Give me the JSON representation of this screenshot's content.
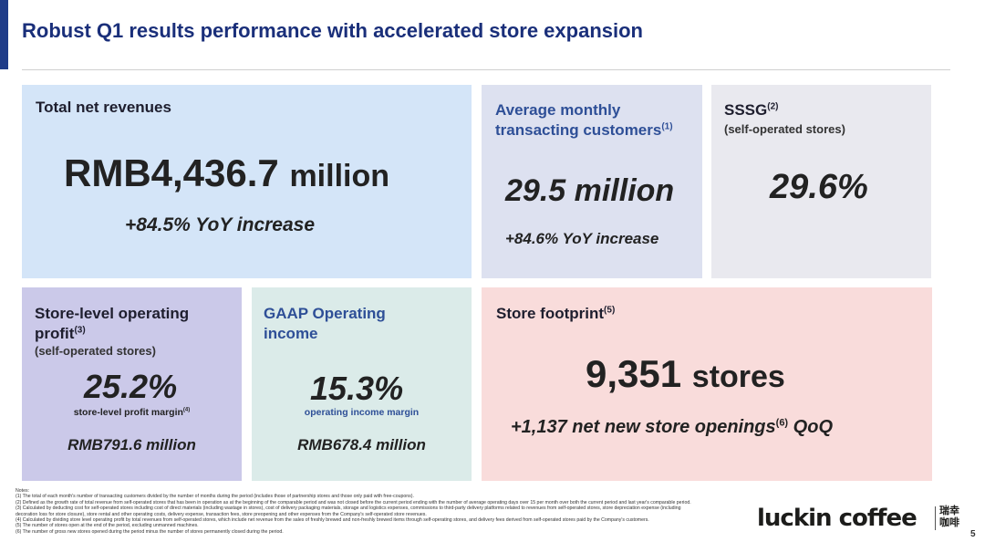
{
  "header": {
    "title": "Robust Q1 results performance with accelerated store expansion",
    "accent_color": "#1f3c88"
  },
  "cards": {
    "revenue": {
      "title": "Total net revenues",
      "value_main": "RMB4,436.7",
      "value_unit": "million",
      "growth": "+84.5% YoY increase"
    },
    "customers": {
      "title_line1": "Average monthly",
      "title_line2": "transacting customers",
      "note_ref": "(1)",
      "value": "29.5 million",
      "growth": "+84.6% YoY increase"
    },
    "sssg": {
      "title": "SSSG",
      "note_ref": "(2)",
      "subtitle": "(self-operated stores)",
      "value": "29.6%"
    },
    "store_level": {
      "title_line1": "Store-level operating",
      "title_line2": "profit",
      "note_ref": "(3)",
      "subtitle": "(self-operated stores)",
      "value": "25.2%",
      "label": "store-level profit margin",
      "label_ref": "(4)",
      "amount": "RMB791.6 million"
    },
    "gaap": {
      "title_line1": "GAAP Operating",
      "title_line2": "income",
      "value": "15.3%",
      "label": "operating income margin",
      "amount": "RMB678.4 million"
    },
    "footprint": {
      "title": "Store footprint",
      "note_ref": "(5)",
      "value_main": "9,351",
      "value_unit": "stores",
      "growth_pre": "+1,137 net new store openings",
      "growth_ref": "(6)",
      "growth_post": " QoQ"
    }
  },
  "notes": {
    "heading": "Notes:",
    "items": [
      "(1)   The total of each month's number of transacting customers divided by the number of months during the period (includes those of partnership stores and those only paid with free-coupons).",
      "(2)   Defined as the growth rate of total revenue from self-operated stores that has been in operation as at the beginning of the comparable period and was not closed before the current period ending with the number of average operating days over 15 per month over both the current period and last year's comparable period.",
      "(3)   Calculated by deducting cost for self-operated stores including cost of direct materials (including wastage in stores), cost of delivery packaging materials, storage and logistics expenses, commissions to third-party delivery platforms related to revenues from self-operated stores, store depreciation expense (including",
      "        decoration loss for store closure), store rental and other operating costs, delivery expense, transaction fees, store preopening and other expenses from the Company's self-operated store revenues.",
      "(4)   Calculated by dividing store level operating profit by total revenues from self-operated stores, which include net revenue from the sales of freshly brewed and non-freshly brewed items through self-operating stores, and delivery fees derived from self-operated stores paid by the Company's customers.",
      "(5)   The number of stores open at the end of the period, excluding unmanned machines.",
      "(6)   The number of gross new stores opened during the period minus the number of stores permanently closed during the period."
    ]
  },
  "footer": {
    "logo": "luckin coffee",
    "logo_cn": "瑞幸咖啡",
    "page_number": "5"
  }
}
